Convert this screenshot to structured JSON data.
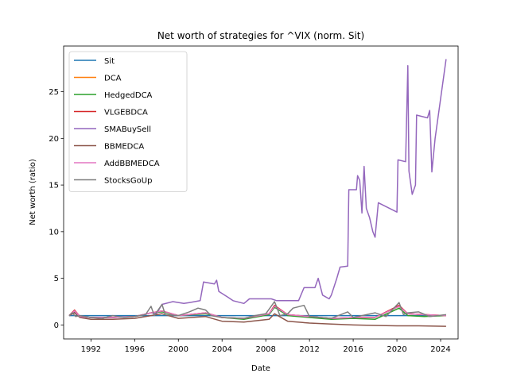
{
  "chart_data": {
    "type": "line",
    "title": "Net worth of strategies for ^VIX (norm. Sit)",
    "xlabel": "Date",
    "ylabel": "Net worth (ratio)",
    "xlim": [
      1989.5,
      2025.6
    ],
    "ylim": [
      -1.5,
      29.9
    ],
    "x_ticks": [
      1992,
      1996,
      2000,
      2004,
      2008,
      2012,
      2016,
      2020,
      2024
    ],
    "y_ticks": [
      0,
      5,
      10,
      15,
      20,
      25
    ],
    "grid": false,
    "legend_position": "top-left",
    "series": [
      {
        "name": "Sit",
        "color": "#1f77b4",
        "points": [
          [
            1990.0,
            1.0
          ],
          [
            2024.5,
            1.0
          ]
        ]
      },
      {
        "name": "DCA",
        "color": "#ff7f0e",
        "points": [
          [
            1990.0,
            1.0
          ],
          [
            1990.5,
            1.4
          ],
          [
            1991.0,
            0.9
          ],
          [
            1992.0,
            0.8
          ],
          [
            1994.0,
            0.8
          ],
          [
            1996.0,
            0.9
          ],
          [
            1997.5,
            1.3
          ],
          [
            1998.5,
            1.5
          ],
          [
            2000.0,
            1.0
          ],
          [
            2002.5,
            1.3
          ],
          [
            2004.0,
            0.8
          ],
          [
            2006.0,
            0.7
          ],
          [
            2008.3,
            1.2
          ],
          [
            2008.8,
            2.0
          ],
          [
            2010.0,
            1.1
          ],
          [
            2012.0,
            0.9
          ],
          [
            2014.0,
            0.7
          ],
          [
            2016.0,
            0.8
          ],
          [
            2018.0,
            0.8
          ],
          [
            2020.2,
            2.0
          ],
          [
            2021.0,
            1.2
          ],
          [
            2022.5,
            1.1
          ],
          [
            2024.5,
            1.0
          ]
        ]
      },
      {
        "name": "HedgedDCA",
        "color": "#2ca02c",
        "points": [
          [
            1990.0,
            1.0
          ],
          [
            1990.5,
            1.4
          ],
          [
            1991.0,
            0.9
          ],
          [
            1992.0,
            0.8
          ],
          [
            1994.0,
            0.8
          ],
          [
            1996.0,
            0.9
          ],
          [
            1997.5,
            1.3
          ],
          [
            1998.5,
            1.4
          ],
          [
            2000.0,
            1.0
          ],
          [
            2002.5,
            1.2
          ],
          [
            2004.0,
            0.8
          ],
          [
            2006.0,
            0.6
          ],
          [
            2008.3,
            1.1
          ],
          [
            2008.8,
            1.9
          ],
          [
            2010.0,
            1.0
          ],
          [
            2012.0,
            0.8
          ],
          [
            2014.0,
            0.6
          ],
          [
            2016.0,
            0.7
          ],
          [
            2018.0,
            0.6
          ],
          [
            2020.2,
            1.8
          ],
          [
            2021.0,
            1.0
          ],
          [
            2022.5,
            0.9
          ],
          [
            2024.5,
            1.0
          ]
        ]
      },
      {
        "name": "VLGEBDCA",
        "color": "#d62728",
        "points": [
          [
            1990.0,
            1.0
          ],
          [
            1990.5,
            1.6
          ],
          [
            1991.0,
            0.9
          ],
          [
            1992.0,
            0.8
          ],
          [
            1994.0,
            0.8
          ],
          [
            1996.0,
            0.9
          ],
          [
            1997.5,
            1.3
          ],
          [
            1998.5,
            1.5
          ],
          [
            2000.0,
            1.0
          ],
          [
            2002.5,
            1.3
          ],
          [
            2004.0,
            0.8
          ],
          [
            2006.0,
            0.7
          ],
          [
            2008.3,
            1.2
          ],
          [
            2008.8,
            2.1
          ],
          [
            2010.0,
            1.1
          ],
          [
            2012.0,
            0.9
          ],
          [
            2014.0,
            0.7
          ],
          [
            2016.0,
            0.8
          ],
          [
            2018.0,
            0.8
          ],
          [
            2020.2,
            2.1
          ],
          [
            2021.0,
            1.2
          ],
          [
            2022.5,
            1.1
          ],
          [
            2024.5,
            1.0
          ]
        ]
      },
      {
        "name": "SMABuySell",
        "color": "#9467bd",
        "points": [
          [
            1990.0,
            1.0
          ],
          [
            1990.5,
            1.3
          ],
          [
            1991.0,
            0.9
          ],
          [
            1992.0,
            0.8
          ],
          [
            1994.0,
            0.8
          ],
          [
            1996.0,
            0.9
          ],
          [
            1997.5,
            1.3
          ],
          [
            1998.0,
            1.2
          ],
          [
            1998.5,
            2.2
          ],
          [
            1999.5,
            2.5
          ],
          [
            2000.5,
            2.3
          ],
          [
            2001.0,
            2.4
          ],
          [
            2002.0,
            2.6
          ],
          [
            2002.3,
            4.6
          ],
          [
            2003.3,
            4.4
          ],
          [
            2003.5,
            4.8
          ],
          [
            2003.7,
            3.6
          ],
          [
            2004.5,
            3.0
          ],
          [
            2005.0,
            2.6
          ],
          [
            2006.0,
            2.3
          ],
          [
            2006.5,
            2.8
          ],
          [
            2008.5,
            2.8
          ],
          [
            2009.0,
            2.6
          ],
          [
            2010.0,
            2.6
          ],
          [
            2011.0,
            2.6
          ],
          [
            2011.5,
            4.0
          ],
          [
            2012.5,
            4.0
          ],
          [
            2012.8,
            5.0
          ],
          [
            2013.2,
            3.2
          ],
          [
            2013.8,
            2.8
          ],
          [
            2014.0,
            3.2
          ],
          [
            2014.5,
            5.0
          ],
          [
            2014.8,
            6.2
          ],
          [
            2015.5,
            6.3
          ],
          [
            2015.6,
            14.5
          ],
          [
            2016.3,
            14.5
          ],
          [
            2016.4,
            16.0
          ],
          [
            2016.6,
            15.5
          ],
          [
            2016.8,
            12.0
          ],
          [
            2017.0,
            17.0
          ],
          [
            2017.2,
            12.5
          ],
          [
            2017.5,
            11.5
          ],
          [
            2017.8,
            10.0
          ],
          [
            2018.0,
            9.4
          ],
          [
            2018.3,
            13.1
          ],
          [
            2020.0,
            12.1
          ],
          [
            2020.1,
            17.7
          ],
          [
            2020.8,
            17.5
          ],
          [
            2021.0,
            27.8
          ],
          [
            2021.1,
            16.5
          ],
          [
            2021.4,
            14.0
          ],
          [
            2021.7,
            15.0
          ],
          [
            2021.8,
            22.5
          ],
          [
            2022.8,
            22.2
          ],
          [
            2023.0,
            23.0
          ],
          [
            2023.2,
            16.4
          ],
          [
            2023.5,
            20.0
          ],
          [
            2024.5,
            28.5
          ]
        ]
      },
      {
        "name": "BBMEDCA",
        "color": "#8c564b",
        "points": [
          [
            1990.0,
            1.0
          ],
          [
            1990.5,
            1.3
          ],
          [
            1991.0,
            0.8
          ],
          [
            1992.0,
            0.6
          ],
          [
            1994.0,
            0.6
          ],
          [
            1996.0,
            0.7
          ],
          [
            1997.5,
            1.0
          ],
          [
            1998.5,
            1.2
          ],
          [
            2000.0,
            0.7
          ],
          [
            2002.5,
            0.9
          ],
          [
            2004.0,
            0.4
          ],
          [
            2006.0,
            0.3
          ],
          [
            2008.3,
            0.6
          ],
          [
            2008.8,
            1.2
          ],
          [
            2010.0,
            0.4
          ],
          [
            2012.0,
            0.2
          ],
          [
            2014.0,
            0.1
          ],
          [
            2016.0,
            0.0
          ],
          [
            2018.0,
            -0.05
          ],
          [
            2020.0,
            -0.1
          ],
          [
            2022.0,
            -0.1
          ],
          [
            2024.5,
            -0.15
          ]
        ]
      },
      {
        "name": "AddBBMEDCA",
        "color": "#e377c2",
        "points": [
          [
            1990.0,
            1.0
          ],
          [
            1990.5,
            1.5
          ],
          [
            1991.0,
            0.9
          ],
          [
            1992.0,
            0.8
          ],
          [
            1994.0,
            0.8
          ],
          [
            1996.0,
            0.9
          ],
          [
            1997.5,
            1.3
          ],
          [
            1998.5,
            1.5
          ],
          [
            2000.0,
            1.0
          ],
          [
            2002.5,
            1.3
          ],
          [
            2004.0,
            0.8
          ],
          [
            2006.0,
            0.7
          ],
          [
            2008.3,
            1.2
          ],
          [
            2008.8,
            2.0
          ],
          [
            2010.0,
            1.1
          ],
          [
            2012.0,
            0.9
          ],
          [
            2014.0,
            0.7
          ],
          [
            2016.0,
            0.8
          ],
          [
            2018.0,
            0.8
          ],
          [
            2020.2,
            2.0
          ],
          [
            2021.0,
            1.2
          ],
          [
            2022.5,
            1.1
          ],
          [
            2024.5,
            1.0
          ]
        ]
      },
      {
        "name": "StocksGoUp",
        "color": "#7f7f7f",
        "points": [
          [
            1990.0,
            1.0
          ],
          [
            1990.3,
            1.3
          ],
          [
            1990.6,
            0.9
          ],
          [
            1991.0,
            1.0
          ],
          [
            1992.0,
            0.8
          ],
          [
            1993.0,
            0.7
          ],
          [
            1994.0,
            1.0
          ],
          [
            1995.0,
            0.8
          ],
          [
            1996.0,
            0.9
          ],
          [
            1997.0,
            1.1
          ],
          [
            1997.5,
            2.0
          ],
          [
            1997.8,
            1.0
          ],
          [
            1998.5,
            2.2
          ],
          [
            1998.8,
            1.1
          ],
          [
            2000.0,
            1.0
          ],
          [
            2001.0,
            1.4
          ],
          [
            2001.8,
            1.8
          ],
          [
            2002.5,
            1.6
          ],
          [
            2003.0,
            1.0
          ],
          [
            2004.0,
            0.8
          ],
          [
            2006.0,
            0.7
          ],
          [
            2007.0,
            1.0
          ],
          [
            2008.0,
            1.2
          ],
          [
            2008.8,
            2.5
          ],
          [
            2009.3,
            1.0
          ],
          [
            2010.0,
            1.2
          ],
          [
            2010.5,
            1.8
          ],
          [
            2011.5,
            2.1
          ],
          [
            2012.0,
            0.9
          ],
          [
            2014.0,
            0.7
          ],
          [
            2015.5,
            1.4
          ],
          [
            2016.0,
            0.8
          ],
          [
            2018.0,
            1.3
          ],
          [
            2019.0,
            0.9
          ],
          [
            2020.2,
            2.4
          ],
          [
            2020.6,
            1.1
          ],
          [
            2021.0,
            1.3
          ],
          [
            2022.0,
            1.4
          ],
          [
            2023.0,
            0.9
          ],
          [
            2024.5,
            1.1
          ]
        ]
      }
    ]
  }
}
